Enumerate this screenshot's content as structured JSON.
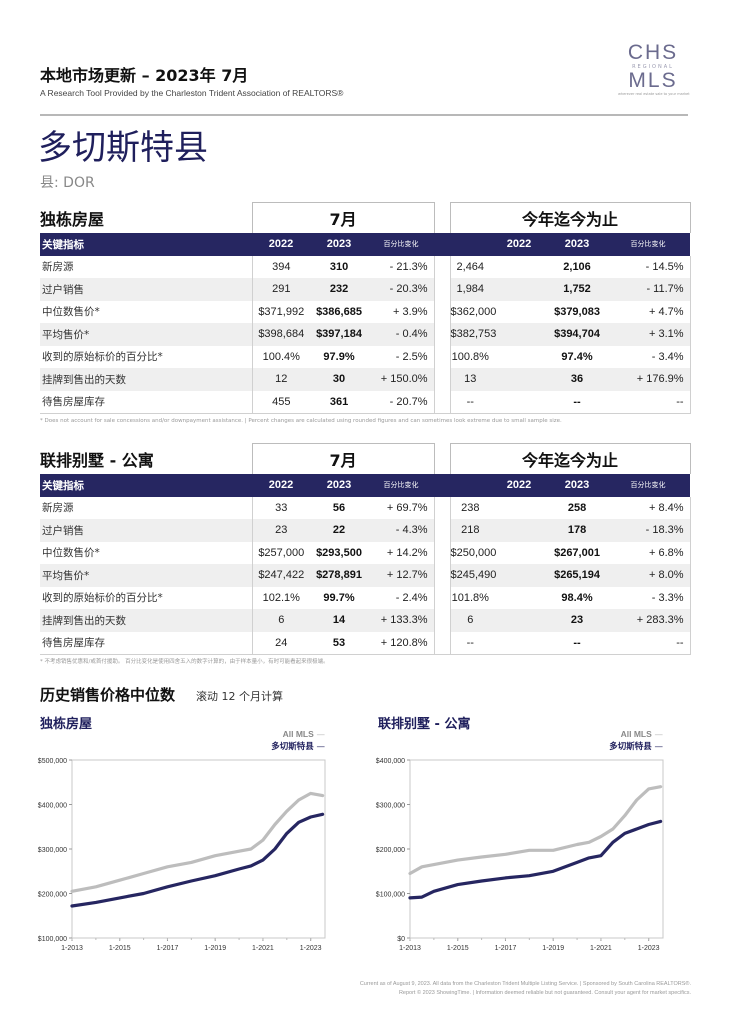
{
  "header": {
    "title": "本地市场更新 – 2023年 7月",
    "subtitle": "A Research Tool Provided by the Charleston Trident Association of REALTORS®",
    "logo": {
      "line1": "CHS",
      "line2": "REGIONAL",
      "line3": "MLS",
      "tagline": "wherever real estate sale to your market"
    }
  },
  "county": {
    "name": "多切斯特县",
    "code": "县: DOR"
  },
  "sections": [
    {
      "title": "独栋房屋",
      "group1": "7月",
      "group2": "今年迄今为止",
      "header": {
        "label": "关键指标",
        "y1": "2022",
        "y2": "2023",
        "pct": "百分比变化"
      },
      "rows": [
        {
          "label": "新房源",
          "a": "394",
          "b": "310",
          "c": "- 21.3%",
          "d": "2,464",
          "e": "2,106",
          "f": "- 14.5%"
        },
        {
          "label": "过户销售",
          "a": "291",
          "b": "232",
          "c": "- 20.3%",
          "d": "1,984",
          "e": "1,752",
          "f": "- 11.7%"
        },
        {
          "label": "中位数售价*",
          "a": "$371,992",
          "b": "$386,685",
          "c": "+ 3.9%",
          "d": "$362,000",
          "e": "$379,083",
          "f": "+ 4.7%"
        },
        {
          "label": "平均售价*",
          "a": "$398,684",
          "b": "$397,184",
          "c": "- 0.4%",
          "d": "$382,753",
          "e": "$394,704",
          "f": "+ 3.1%"
        },
        {
          "label": "收到的原始标价的百分比*",
          "a": "100.4%",
          "b": "97.9%",
          "c": "- 2.5%",
          "d": "100.8%",
          "e": "97.4%",
          "f": "- 3.4%"
        },
        {
          "label": "挂牌到售出的天数",
          "a": "12",
          "b": "30",
          "c": "+ 150.0%",
          "d": "13",
          "e": "36",
          "f": "+ 176.9%"
        },
        {
          "label": "待售房屋库存",
          "a": "455",
          "b": "361",
          "c": "- 20.7%",
          "d": "--",
          "e": "--",
          "f": "--"
        }
      ],
      "footnote": "* Does not account for sale concessions and/or downpayment assistance. | Percent changes are calculated using rounded figures and can sometimes look extreme due to small sample size."
    },
    {
      "title": "联排别墅 - 公寓",
      "group1": "7月",
      "group2": "今年迄今为止",
      "header": {
        "label": "关键指标",
        "y1": "2022",
        "y2": "2023",
        "pct": "百分比变化"
      },
      "rows": [
        {
          "label": "新房源",
          "a": "33",
          "b": "56",
          "c": "+ 69.7%",
          "d": "238",
          "e": "258",
          "f": "+ 8.4%"
        },
        {
          "label": "过户销售",
          "a": "23",
          "b": "22",
          "c": "- 4.3%",
          "d": "218",
          "e": "178",
          "f": "- 18.3%"
        },
        {
          "label": "中位数售价*",
          "a": "$257,000",
          "b": "$293,500",
          "c": "+ 14.2%",
          "d": "$250,000",
          "e": "$267,001",
          "f": "+ 6.8%"
        },
        {
          "label": "平均售价*",
          "a": "$247,422",
          "b": "$278,891",
          "c": "+ 12.7%",
          "d": "$245,490",
          "e": "$265,194",
          "f": "+ 8.0%"
        },
        {
          "label": "收到的原始标价的百分比*",
          "a": "102.1%",
          "b": "99.7%",
          "c": "- 2.4%",
          "d": "101.8%",
          "e": "98.4%",
          "f": "- 3.3%"
        },
        {
          "label": "挂牌到售出的天数",
          "a": "6",
          "b": "14",
          "c": "+ 133.3%",
          "d": "6",
          "e": "23",
          "f": "+ 283.3%"
        },
        {
          "label": "待售房屋库存",
          "a": "24",
          "b": "53",
          "c": "+ 120.8%",
          "d": "--",
          "e": "--",
          "f": "--"
        }
      ],
      "footnote": "* 不考虑销售优惠和/或首付援助。 百分比变化是使用四舍五入的数字计算的，由于样本量小，有时可能看起来很极端。"
    }
  ],
  "history": {
    "title": "历史销售价格中位数",
    "subtitle": "滚动 12 个月计算"
  },
  "chart_data": [
    {
      "type": "line",
      "title": "独栋房屋",
      "legend": [
        "All MLS",
        "多切斯特县"
      ],
      "xticks": [
        "1-2013",
        "1-2015",
        "1-2017",
        "1-2019",
        "1-2021",
        "1-2023"
      ],
      "yticks": [
        "$100,000",
        "$200,000",
        "$300,000",
        "$400,000",
        "$500,000"
      ],
      "ylim": [
        100000,
        500000
      ],
      "xlim": [
        2013.0,
        2023.6
      ],
      "series": [
        {
          "name": "All MLS",
          "color": "#bdbdbd",
          "x": [
            2013.0,
            2014.0,
            2015.0,
            2016.0,
            2017.0,
            2018.0,
            2019.0,
            2020.0,
            2020.5,
            2021.0,
            2021.5,
            2022.0,
            2022.5,
            2023.0,
            2023.5
          ],
          "y": [
            205000,
            215000,
            230000,
            245000,
            260000,
            270000,
            285000,
            295000,
            300000,
            320000,
            355000,
            385000,
            410000,
            425000,
            420000
          ]
        },
        {
          "name": "多切斯特县",
          "color": "#262661",
          "x": [
            2013.0,
            2014.0,
            2015.0,
            2016.0,
            2017.0,
            2018.0,
            2019.0,
            2020.0,
            2020.5,
            2021.0,
            2021.5,
            2022.0,
            2022.5,
            2023.0,
            2023.5
          ],
          "y": [
            172000,
            180000,
            190000,
            200000,
            215000,
            228000,
            240000,
            255000,
            262000,
            275000,
            300000,
            335000,
            360000,
            372000,
            378000
          ]
        }
      ]
    },
    {
      "type": "line",
      "title": "联排别墅 - 公寓",
      "legend": [
        "All MLS",
        "多切斯特县"
      ],
      "xticks": [
        "1-2013",
        "1-2015",
        "1-2017",
        "1-2019",
        "1-2021",
        "1-2023"
      ],
      "yticks": [
        "$0",
        "$100,000",
        "$200,000",
        "$300,000",
        "$400,000"
      ],
      "ylim": [
        0,
        400000
      ],
      "xlim": [
        2013.0,
        2023.6
      ],
      "series": [
        {
          "name": "All MLS",
          "color": "#bdbdbd",
          "x": [
            2013.0,
            2013.5,
            2014.0,
            2015.0,
            2016.0,
            2017.0,
            2018.0,
            2019.0,
            2020.0,
            2020.5,
            2021.0,
            2021.5,
            2022.0,
            2022.5,
            2023.0,
            2023.5
          ],
          "y": [
            145000,
            160000,
            165000,
            175000,
            182000,
            188000,
            197000,
            197000,
            210000,
            215000,
            228000,
            245000,
            275000,
            310000,
            335000,
            340000
          ]
        },
        {
          "name": "多切斯特县",
          "color": "#262661",
          "x": [
            2013.0,
            2013.5,
            2014.0,
            2015.0,
            2016.0,
            2017.0,
            2018.0,
            2019.0,
            2020.0,
            2020.5,
            2021.0,
            2021.5,
            2022.0,
            2022.5,
            2023.0,
            2023.5
          ],
          "y": [
            90000,
            92000,
            105000,
            120000,
            128000,
            135000,
            140000,
            150000,
            170000,
            180000,
            185000,
            215000,
            235000,
            245000,
            255000,
            262000
          ]
        }
      ]
    }
  ],
  "footer": {
    "line1": "Current as of August 9, 2023. All data from the Charleston Trident Multiple Listing Service. | Sponsored by South Carolina REALTORS®.",
    "line2": "Report © 2023 ShowingTime. | Information deemed reliable but not guaranteed. Consult your agent for market specifics."
  }
}
